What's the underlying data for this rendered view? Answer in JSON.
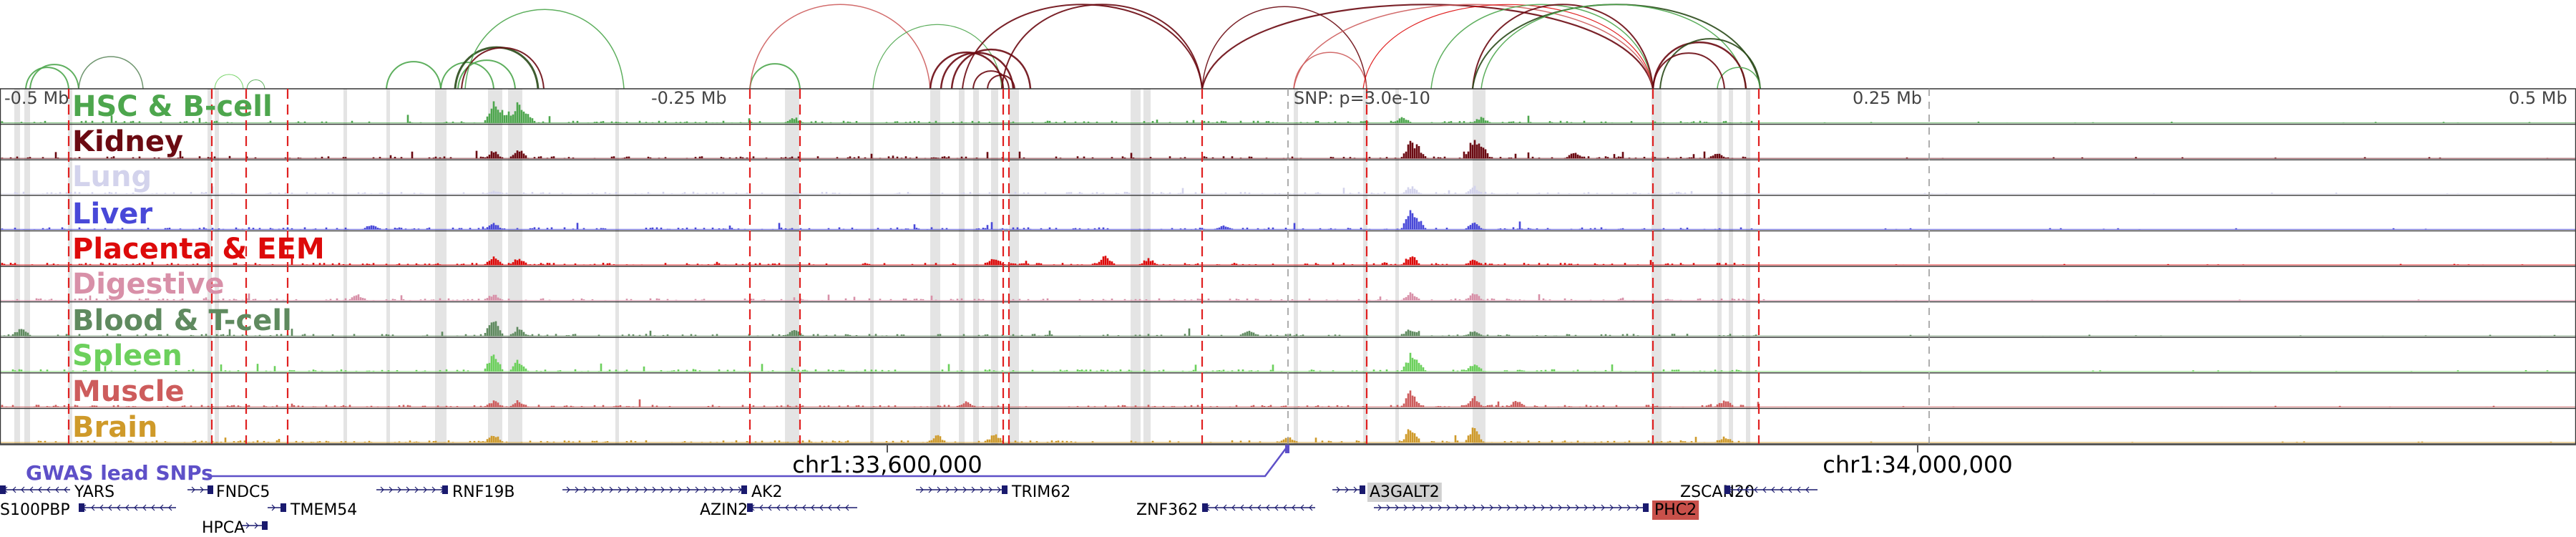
{
  "tracks": [
    {
      "name": "HSC & B-cell",
      "color": "#4da64d"
    },
    {
      "name": "Kidney",
      "color": "#6b0a12"
    },
    {
      "name": "Lung",
      "color": "#d3d3ec"
    },
    {
      "name": "Liver",
      "color": "#4848d8"
    },
    {
      "name": "Placenta & EEM",
      "color": "#dd0a0a"
    },
    {
      "name": "Digestive",
      "color": "#d890a8"
    },
    {
      "name": "Blood & T-cell",
      "color": "#5f8a5f"
    },
    {
      "name": "Spleen",
      "color": "#6cd05c"
    },
    {
      "name": "Muscle",
      "color": "#cd5c5c"
    },
    {
      "name": "Brain",
      "color": "#cf9a2a"
    }
  ],
  "scale_labels": {
    "left": "-0.5 Mb",
    "left_mid": "-0.25 Mb",
    "snp": "SNP: p=3.0e-10",
    "right_mid": "0.25 Mb",
    "right": "0.5 Mb"
  },
  "coordinates": [
    "chr1:33,600,000",
    "chr1:34,000,000"
  ],
  "gwas_label": "GWAS lead SNPs",
  "genes": [
    {
      "name": "YARS",
      "highlight": ""
    },
    {
      "name": "FNDC5",
      "highlight": ""
    },
    {
      "name": "TMEM54",
      "highlight": ""
    },
    {
      "name": "RNF19B",
      "highlight": ""
    },
    {
      "name": "AK2",
      "highlight": ""
    },
    {
      "name": "AZIN2",
      "highlight": ""
    },
    {
      "name": "TRIM62",
      "highlight": ""
    },
    {
      "name": "ZNF362",
      "highlight": ""
    },
    {
      "name": "A3GALT2",
      "highlight": "#d0d0d0"
    },
    {
      "name": "ZSCAN20",
      "highlight": ""
    },
    {
      "name": "PHC2",
      "highlight": "#c8504a"
    },
    {
      "name": "S100PBP",
      "highlight": ""
    },
    {
      "name": "HPCA",
      "highlight": ""
    }
  ]
}
